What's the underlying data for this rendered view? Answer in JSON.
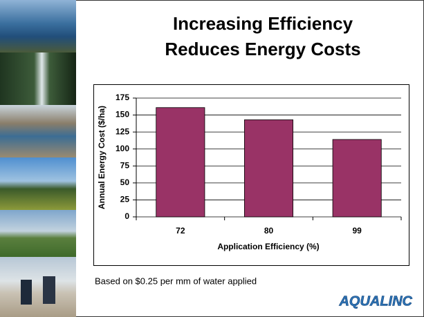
{
  "slide": {
    "title": [
      "Increasing Efficiency",
      "Reduces Energy Costs"
    ],
    "note": "Based on $0.25 per mm of water applied",
    "logo": "AQUALINC"
  },
  "chart_data": {
    "type": "bar",
    "x_label": "Application Efficiency (%)",
    "y_label": "Annual Energy Cost ($/ha)",
    "categories": [
      "72",
      "80",
      "99"
    ],
    "values": [
      161,
      143,
      114
    ],
    "color": "#993366",
    "ylim": [
      0,
      175
    ],
    "yticks": [
      0,
      25,
      50,
      75,
      100,
      125,
      150,
      175
    ],
    "grid": true
  }
}
